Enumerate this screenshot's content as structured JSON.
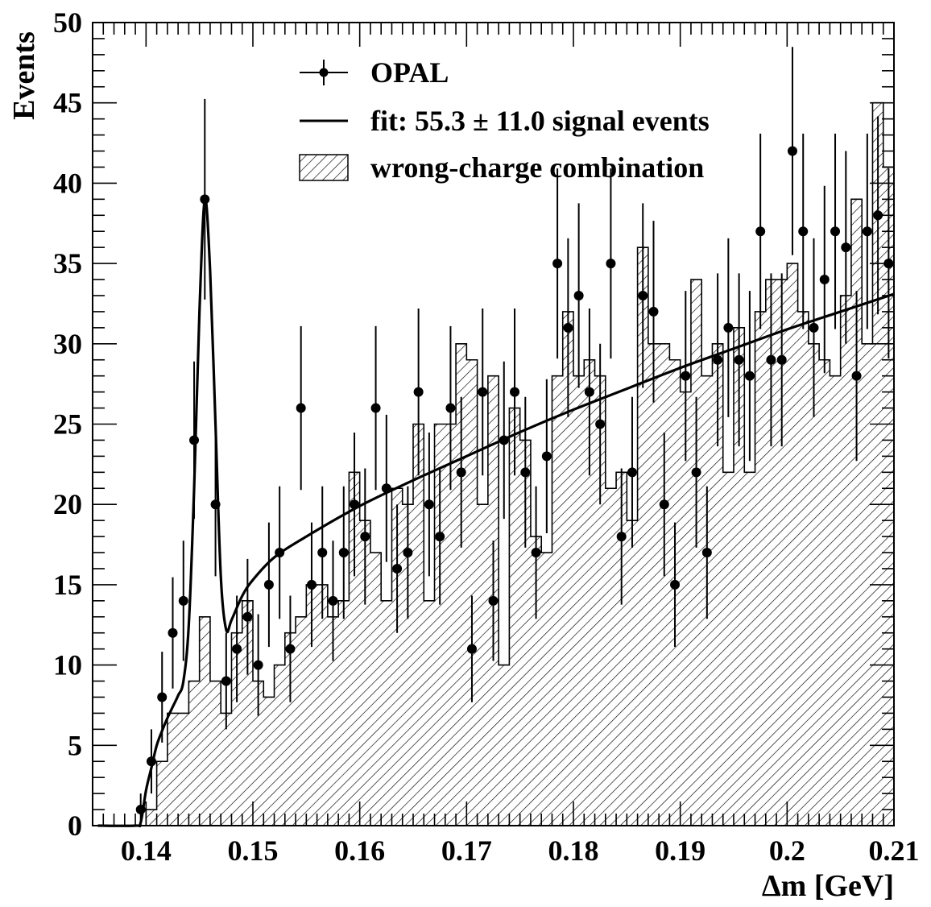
{
  "chart_data": {
    "type": "histogram",
    "title": "",
    "xlabel": "Δm [GeV]",
    "ylabel": "Events",
    "xlim": [
      0.135,
      0.21
    ],
    "ylim": [
      0,
      50
    ],
    "x_ticks": [
      0.14,
      0.15,
      0.16,
      0.17,
      0.18,
      0.19,
      0.2,
      0.21
    ],
    "x_tick_labels": [
      "0.14",
      "0.15",
      "0.16",
      "0.17",
      "0.18",
      "0.19",
      "0.2",
      "0.21"
    ],
    "y_ticks": [
      0,
      5,
      10,
      15,
      20,
      25,
      30,
      35,
      40,
      45,
      50
    ],
    "y_tick_labels": [
      "0",
      "5",
      "10",
      "15",
      "20",
      "25",
      "30",
      "35",
      "40",
      "45",
      "50"
    ],
    "legend_placement": "top-center",
    "bin_width": 0.001,
    "series": [
      {
        "name": "OPAL",
        "kind": "points-with-errors",
        "x": [
          0.1395,
          0.1405,
          0.1415,
          0.1425,
          0.1435,
          0.1445,
          0.1455,
          0.1465,
          0.1475,
          0.1485,
          0.1495,
          0.1505,
          0.1515,
          0.1525,
          0.1535,
          0.1545,
          0.1555,
          0.1565,
          0.1575,
          0.1585,
          0.1595,
          0.1605,
          0.1615,
          0.1625,
          0.1635,
          0.1645,
          0.1655,
          0.1665,
          0.1675,
          0.1685,
          0.1695,
          0.1705,
          0.1715,
          0.1725,
          0.1735,
          0.1745,
          0.1755,
          0.1765,
          0.1775,
          0.1785,
          0.1795,
          0.1805,
          0.1815,
          0.1825,
          0.1835,
          0.1845,
          0.1855,
          0.1865,
          0.1875,
          0.1885,
          0.1895,
          0.1905,
          0.1915,
          0.1925,
          0.1935,
          0.1945,
          0.1955,
          0.1965,
          0.1975,
          0.1985,
          0.1995,
          0.2005,
          0.2015,
          0.2025,
          0.2035,
          0.2045,
          0.2055,
          0.2065,
          0.2075,
          0.2085,
          0.2095
        ],
        "y": [
          1,
          4,
          8,
          12,
          14,
          24,
          39,
          20,
          9,
          11,
          13,
          10,
          15,
          17,
          11,
          26,
          15,
          17,
          14,
          17,
          20,
          18,
          26,
          21,
          16,
          17,
          27,
          20,
          18,
          26,
          22,
          11,
          27,
          14,
          24,
          27,
          22,
          17,
          23,
          35,
          31,
          33,
          27,
          25,
          35,
          18,
          22,
          33,
          32,
          20,
          15,
          28,
          22,
          17,
          29,
          31,
          29,
          28,
          37,
          29,
          29,
          42,
          37,
          31,
          34,
          37,
          36,
          28,
          37,
          38,
          35
        ]
      },
      {
        "name": "fit: 55.3 ± 11.0 signal events",
        "kind": "line",
        "peak": 0.1455,
        "points": [
          [
            0.1355,
            0
          ],
          [
            0.139,
            0
          ],
          [
            0.1395,
            0.2
          ],
          [
            0.14,
            2.2
          ],
          [
            0.1405,
            3.6
          ],
          [
            0.141,
            5.0
          ],
          [
            0.1415,
            5.9
          ],
          [
            0.142,
            6.7
          ],
          [
            0.1425,
            7.4
          ],
          [
            0.143,
            8.1
          ],
          [
            0.1435,
            9.0
          ],
          [
            0.144,
            12.5
          ],
          [
            0.1445,
            21.0
          ],
          [
            0.145,
            32.0
          ],
          [
            0.1455,
            39.0
          ],
          [
            0.146,
            34.5
          ],
          [
            0.1465,
            25.0
          ],
          [
            0.147,
            15.5
          ],
          [
            0.1475,
            12.2
          ],
          [
            0.148,
            12.8
          ],
          [
            0.149,
            14.3
          ],
          [
            0.15,
            15.3
          ],
          [
            0.152,
            16.7
          ],
          [
            0.155,
            18.0
          ],
          [
            0.16,
            19.9
          ],
          [
            0.165,
            21.5
          ],
          [
            0.17,
            23.0
          ],
          [
            0.175,
            24.5
          ],
          [
            0.18,
            25.9
          ],
          [
            0.185,
            27.2
          ],
          [
            0.19,
            28.5
          ],
          [
            0.195,
            29.7
          ],
          [
            0.2,
            30.9
          ],
          [
            0.205,
            32.0
          ],
          [
            0.21,
            33.1
          ]
        ]
      },
      {
        "name": "wrong-charge combination",
        "kind": "hatched-histogram",
        "bin_edges_start": 0.139,
        "values": [
          0,
          1,
          4,
          7,
          7,
          9,
          13,
          9,
          7,
          12,
          14,
          9,
          8,
          10,
          12,
          13,
          15,
          15,
          13,
          14,
          22,
          19,
          17,
          14,
          21,
          20,
          25,
          14,
          25,
          25,
          30,
          29,
          20,
          28,
          10,
          26,
          24,
          18,
          17,
          28,
          32,
          28,
          29,
          28,
          21,
          22,
          19,
          36,
          30,
          30,
          29,
          27,
          34,
          28,
          30,
          22,
          31,
          22,
          32,
          34,
          34,
          35,
          32,
          30,
          29,
          28,
          33,
          39,
          30,
          45,
          41
        ]
      }
    ]
  }
}
